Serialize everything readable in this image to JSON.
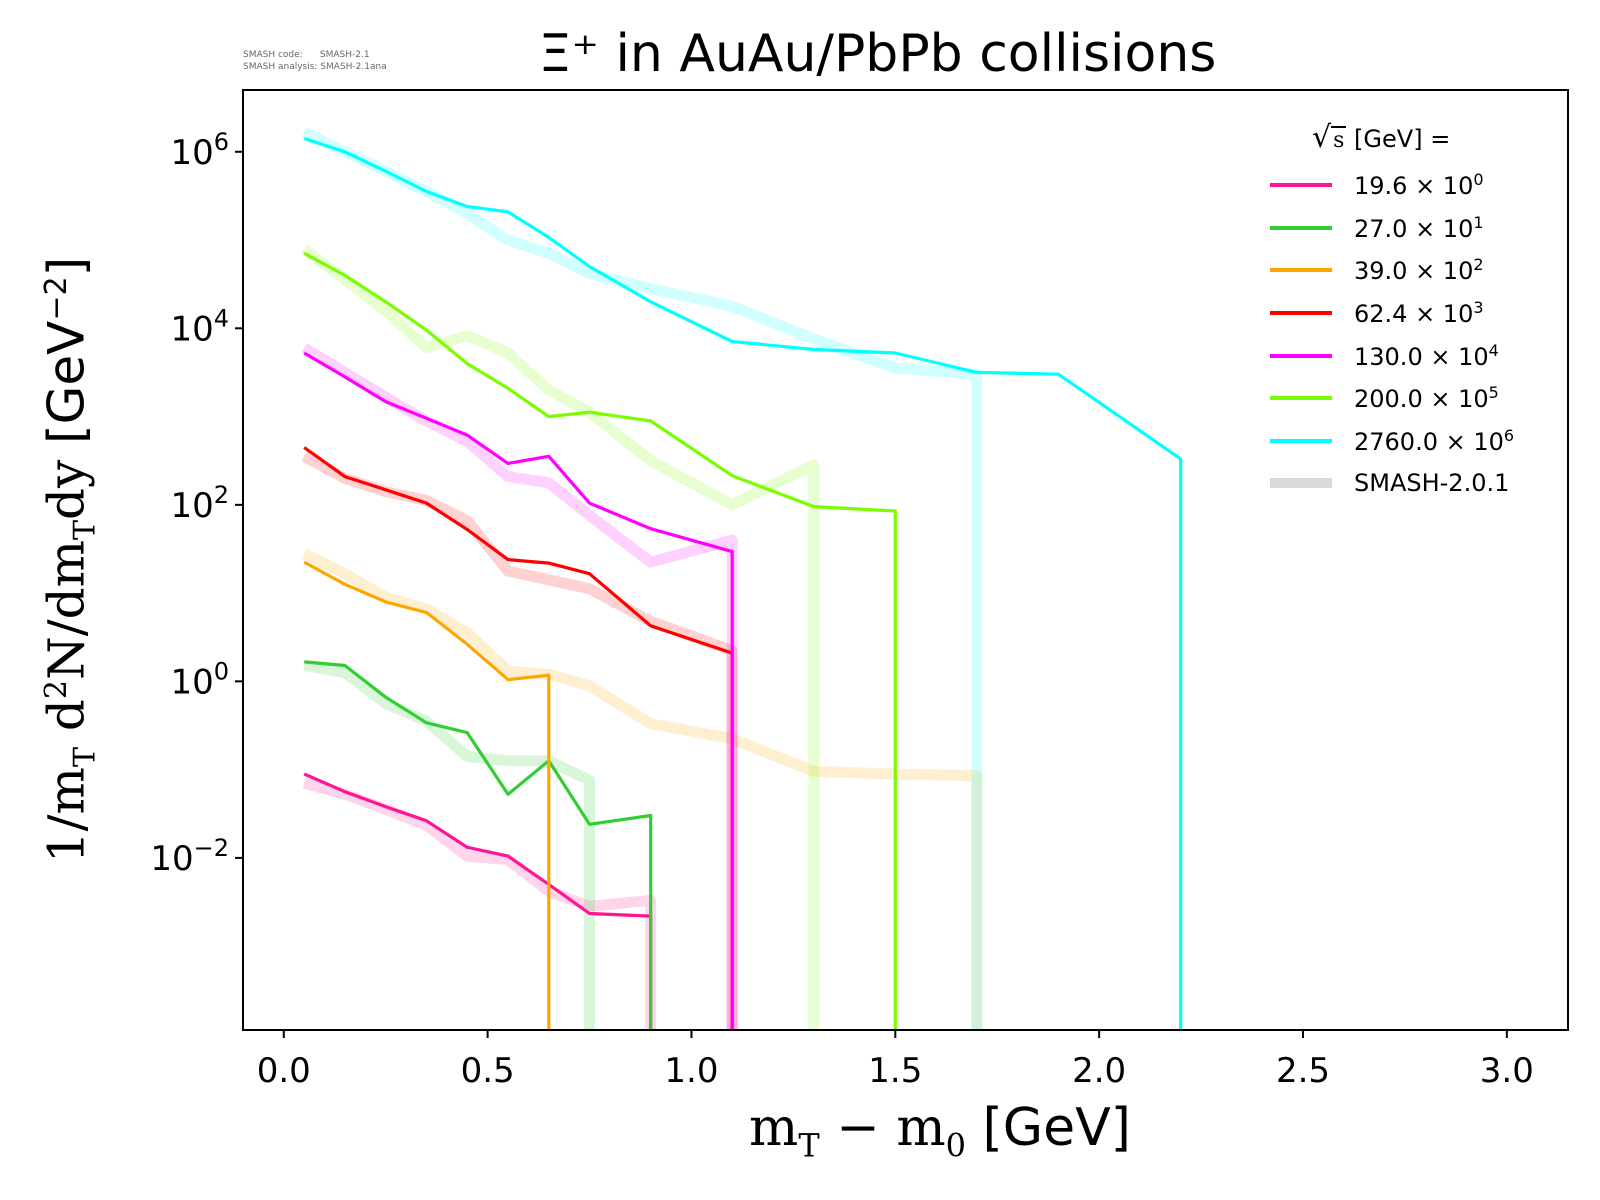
{
  "stamp": {
    "line1": "SMASH code:      SMASH-2.1",
    "line2": "SMASH analysis: SMASH-2.1ana"
  },
  "chart_data": {
    "type": "line",
    "title": "Ξ⁺ in AuAu/PbPb collisions",
    "xlabel": "m_T − m_0 [GeV]",
    "xlabel_parts": {
      "math": "m",
      "sub1": "T",
      "minus": " − m",
      "sub2": "0",
      "unit": " [GeV]"
    },
    "ylabel": "1/m_T d²N/dm_T dy [GeV⁻²]",
    "ylabel_parts": {
      "pre": "1/m",
      "sub1": "T",
      "mid": " d",
      "sup1": "2",
      "mid2": "N/dm",
      "sub2": "T",
      "mid3": "dy ",
      "unit": "[GeV",
      "sup2": "−2",
      "close": "]"
    },
    "xlim": [
      -0.1,
      3.15
    ],
    "ylim_log10": [
      -3.95,
      6.7
    ],
    "yscale": "log",
    "x_ticks": [
      "0.0",
      "0.5",
      "1.0",
      "1.5",
      "2.0",
      "2.5",
      "3.0"
    ],
    "x_tick_values": [
      0.0,
      0.5,
      1.0,
      1.5,
      2.0,
      2.5,
      3.0
    ],
    "y_ticks": [
      {
        "base": "10",
        "exp": "6",
        "log": 6
      },
      {
        "base": "10",
        "exp": "4",
        "log": 4
      },
      {
        "base": "10",
        "exp": "2",
        "log": 2
      },
      {
        "base": "10",
        "exp": "0",
        "log": 0
      },
      {
        "base": "10",
        "exp": "−2",
        "log": -2
      }
    ],
    "legend": {
      "title_root": "√",
      "title_s": "s",
      "title_rest": "  [GeV] ="
    },
    "series": [
      {
        "name": "19.6 × 10⁰",
        "label_main": "19.6 × 10",
        "label_exp": "0",
        "color": "#ff1493",
        "x": [
          0.05,
          0.15,
          0.25,
          0.35,
          0.45,
          0.55,
          0.65,
          0.75,
          0.9
        ],
        "log10_y": [
          -1.05,
          -1.25,
          -1.42,
          -1.58,
          -1.88,
          -1.98,
          -2.3,
          -2.63,
          -2.66
        ]
      },
      {
        "name": "27.0 × 10¹",
        "label_main": "27.0 × 10",
        "label_exp": "1",
        "color": "#32cd32",
        "x": [
          0.05,
          0.15,
          0.25,
          0.35,
          0.45,
          0.55,
          0.65,
          0.75,
          0.9
        ],
        "log10_y": [
          0.22,
          0.18,
          -0.18,
          -0.47,
          -0.58,
          -1.28,
          -0.9,
          -1.62,
          -1.52
        ]
      },
      {
        "name": "39.0 × 10²",
        "label_main": "39.0 × 10",
        "label_exp": "2",
        "color": "#ffa500",
        "x": [
          0.05,
          0.15,
          0.25,
          0.35,
          0.45,
          0.55,
          0.65
        ],
        "log10_y": [
          1.35,
          1.1,
          0.9,
          0.78,
          0.42,
          0.02,
          0.07
        ]
      },
      {
        "name": "62.4 × 10³",
        "label_main": "62.4 × 10",
        "label_exp": "3",
        "color": "#ff0000",
        "x": [
          0.05,
          0.15,
          0.25,
          0.35,
          0.45,
          0.55,
          0.65,
          0.75,
          0.9,
          1.1
        ],
        "log10_y": [
          2.65,
          2.32,
          2.17,
          2.02,
          1.72,
          1.38,
          1.34,
          1.22,
          0.63,
          0.32
        ]
      },
      {
        "name": "130.0 × 10⁴",
        "label_main": "130.0 × 10",
        "label_exp": "4",
        "color": "#ff00ff",
        "x": [
          0.05,
          0.15,
          0.25,
          0.35,
          0.45,
          0.55,
          0.65,
          0.75,
          0.9,
          1.1
        ],
        "log10_y": [
          3.72,
          3.45,
          3.17,
          2.98,
          2.79,
          2.47,
          2.55,
          2.02,
          1.73,
          1.47
        ]
      },
      {
        "name": "200.0 × 10⁵",
        "label_main": "200.0 × 10",
        "label_exp": "5",
        "color": "#7cfc00",
        "x": [
          0.05,
          0.15,
          0.25,
          0.35,
          0.45,
          0.55,
          0.65,
          0.75,
          0.9,
          1.1,
          1.3,
          1.5
        ],
        "log10_y": [
          4.85,
          4.6,
          4.3,
          3.98,
          3.6,
          3.32,
          3.0,
          3.05,
          2.95,
          2.33,
          1.98,
          1.93
        ]
      },
      {
        "name": "2760.0 × 10⁶",
        "label_main": "2760.0 × 10",
        "label_exp": "6",
        "color": "#00ffff",
        "x": [
          0.05,
          0.15,
          0.25,
          0.35,
          0.45,
          0.55,
          0.65,
          0.75,
          0.9,
          1.1,
          1.3,
          1.5,
          1.7,
          1.9,
          2.2
        ],
        "log10_y": [
          6.15,
          6.0,
          5.78,
          5.55,
          5.38,
          5.32,
          5.03,
          4.7,
          4.3,
          3.85,
          3.76,
          3.72,
          3.5,
          3.48,
          2.52
        ]
      }
    ],
    "reference": {
      "name": "SMASH-2.0.1",
      "color": "#d9d9d9",
      "series": [
        {
          "color": "#ff1493",
          "x": [
            0.05,
            0.15,
            0.25,
            0.35,
            0.45,
            0.55,
            0.65,
            0.75,
            0.9
          ],
          "log10_y": [
            -1.15,
            -1.28,
            -1.45,
            -1.63,
            -1.98,
            -2.02,
            -2.38,
            -2.55,
            -2.48
          ]
        },
        {
          "color": "#32cd32",
          "x": [
            0.05,
            0.15,
            0.25,
            0.35,
            0.45,
            0.55,
            0.65,
            0.75
          ],
          "log10_y": [
            0.18,
            0.1,
            -0.25,
            -0.45,
            -0.85,
            -0.9,
            -0.9,
            -1.12
          ]
        },
        {
          "color": "#ffa500",
          "x": [
            0.05,
            0.15,
            0.25,
            0.35,
            0.45,
            0.55,
            0.65,
            0.75,
            0.9,
            1.1,
            1.3,
            1.5,
            1.7
          ],
          "log10_y": [
            1.45,
            1.22,
            0.95,
            0.82,
            0.55,
            0.12,
            0.08,
            -0.05,
            -0.48,
            -0.65,
            -1.02,
            -1.05,
            -1.07
          ]
        },
        {
          "color": "#ff0000",
          "x": [
            0.05,
            0.15,
            0.25,
            0.35,
            0.45,
            0.55,
            0.65,
            0.75,
            0.9,
            1.1
          ],
          "log10_y": [
            2.55,
            2.3,
            2.15,
            2.05,
            1.82,
            1.25,
            1.15,
            1.05,
            0.68,
            0.35
          ]
        },
        {
          "color": "#ff00ff",
          "x": [
            0.05,
            0.15,
            0.25,
            0.35,
            0.45,
            0.55,
            0.65,
            0.75,
            0.9,
            1.1
          ],
          "log10_y": [
            3.78,
            3.5,
            3.22,
            2.95,
            2.72,
            2.32,
            2.25,
            1.88,
            1.35,
            1.6
          ]
        },
        {
          "color": "#7cfc00",
          "x": [
            0.05,
            0.15,
            0.25,
            0.35,
            0.45,
            0.55,
            0.65,
            0.75,
            0.9,
            1.1,
            1.3
          ],
          "log10_y": [
            4.9,
            4.55,
            4.2,
            3.78,
            3.92,
            3.72,
            3.3,
            3.05,
            2.5,
            2.0,
            2.45
          ]
        },
        {
          "color": "#00ffff",
          "x": [
            0.05,
            0.15,
            0.25,
            0.35,
            0.45,
            0.55,
            0.65,
            0.75,
            0.9,
            1.1,
            1.3,
            1.5,
            1.7
          ],
          "log10_y": [
            6.22,
            6.0,
            5.78,
            5.55,
            5.3,
            5.0,
            4.85,
            4.62,
            4.45,
            4.25,
            3.88,
            3.55,
            3.48
          ]
        }
      ]
    }
  }
}
